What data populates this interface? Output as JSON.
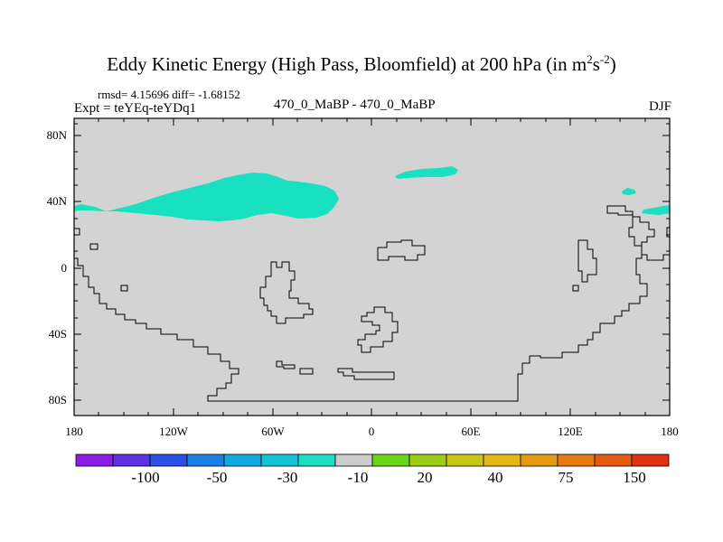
{
  "figure": {
    "title_main": "Eddy Kinetic Energy (High Pass, Bloomfield) at 200 hPa (in m",
    "title_unit_base1": "s",
    "title_sup1": "2",
    "title_sup2": "-2",
    "title_close": ")",
    "stats": "rmsd= 4.15696 diff= -1.68152",
    "expt": "Expt = teYEq-teYDq1",
    "center_label": "470_0_MaBP - 470_0_MaBP",
    "season": "DJF"
  },
  "map": {
    "lat_labels": [
      "80N",
      "40N",
      "0",
      "40S",
      "80S"
    ],
    "lon_labels": [
      "180",
      "120W",
      "60W",
      "0",
      "60E",
      "120E",
      "180"
    ]
  },
  "legend": {
    "labels": [
      "-100",
      "-50",
      "-30",
      "-10",
      "20",
      "40",
      "75",
      "150"
    ],
    "colors": [
      "#8a1ee6",
      "#5a32e0",
      "#2a50e6",
      "#1a80e6",
      "#10a8e0",
      "#10c4d6",
      "#18e0c0",
      "#cccccc",
      "#6ad418",
      "#9ccc18",
      "#c8c814",
      "#e6b814",
      "#e69a10",
      "#e67a10",
      "#e65a10",
      "#e03210"
    ],
    "map_fill": "#d3d3d3",
    "anomaly_color": "#18e0c0"
  }
}
